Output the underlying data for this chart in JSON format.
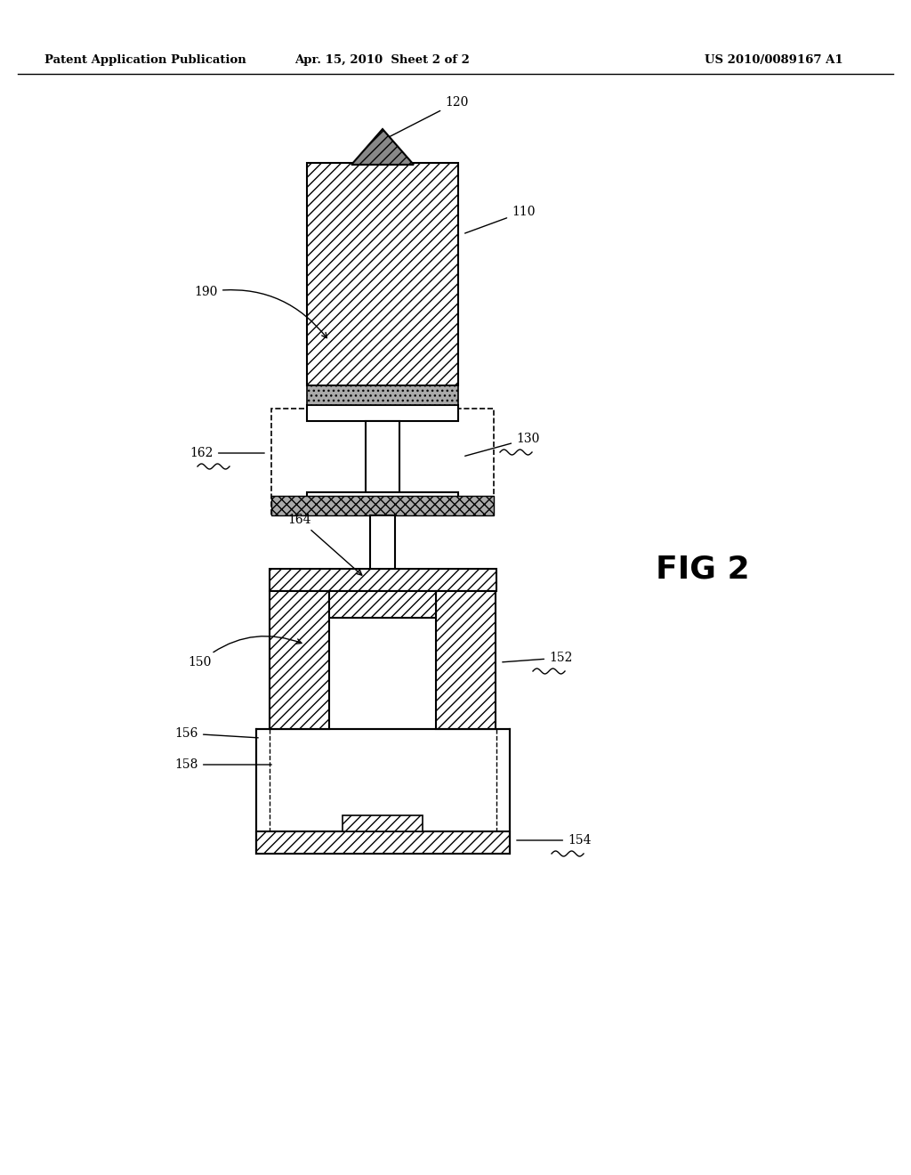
{
  "bg_color": "#ffffff",
  "header_left": "Patent Application Publication",
  "header_mid": "Apr. 15, 2010  Sheet 2 of 2",
  "header_right": "US 2010/0089167 A1",
  "fig_label": "FIG 2"
}
